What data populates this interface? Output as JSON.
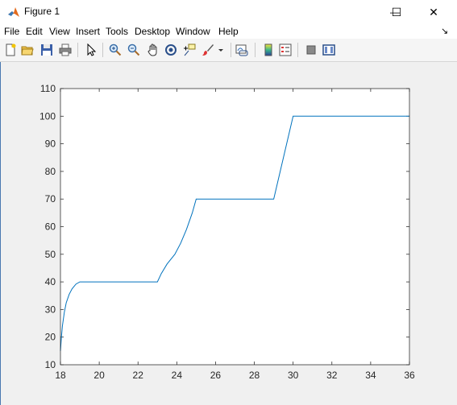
{
  "window": {
    "title": "Figure 1",
    "minimize_glyph": "—",
    "maximize_glyph": "☐",
    "close_glyph": "✕"
  },
  "menubar": {
    "items": [
      "File",
      "Edit",
      "View",
      "Insert",
      "Tools",
      "Desktop",
      "Window",
      "Help"
    ],
    "overflow_glyph": "↘"
  },
  "toolbar": {
    "tools": [
      "new-figure-icon",
      "open-file-icon",
      "save-icon",
      "print-icon",
      "select-arrow-icon",
      "zoom-in-icon",
      "zoom-out-icon",
      "pan-hand-icon",
      "rotate-3d-icon",
      "data-cursor-icon",
      "brush-icon",
      "link-plot-icon",
      "colorbar-icon",
      "legend-icon",
      "hide-plot-tools-icon",
      "show-plot-tools-icon"
    ]
  },
  "colors": {
    "line": "#0072bd",
    "axes_text": "#262626",
    "axes_box": "#262626",
    "figure_bg": "#f0f0f0",
    "axes_bg": "#ffffff"
  },
  "chart_data": {
    "type": "line",
    "title": "",
    "xlabel": "",
    "ylabel": "",
    "xlim": [
      18,
      36
    ],
    "ylim": [
      10,
      110
    ],
    "xticks": [
      18,
      20,
      22,
      24,
      26,
      28,
      30,
      32,
      34,
      36
    ],
    "yticks": [
      10,
      20,
      30,
      40,
      50,
      60,
      70,
      80,
      90,
      100,
      110
    ],
    "grid": false,
    "series": [
      {
        "x": [
          18,
          18.05,
          18.1,
          18.2,
          18.3,
          18.45,
          18.6,
          18.8,
          19,
          23,
          23.2,
          23.5,
          23.9,
          24.2,
          24.5,
          24.8,
          25,
          29,
          30,
          36
        ],
        "y": [
          15,
          20,
          24,
          29,
          32.5,
          35.5,
          37.5,
          39.2,
          40,
          40,
          43,
          46.5,
          50,
          54,
          59,
          65,
          70,
          70,
          100,
          100
        ]
      }
    ]
  }
}
